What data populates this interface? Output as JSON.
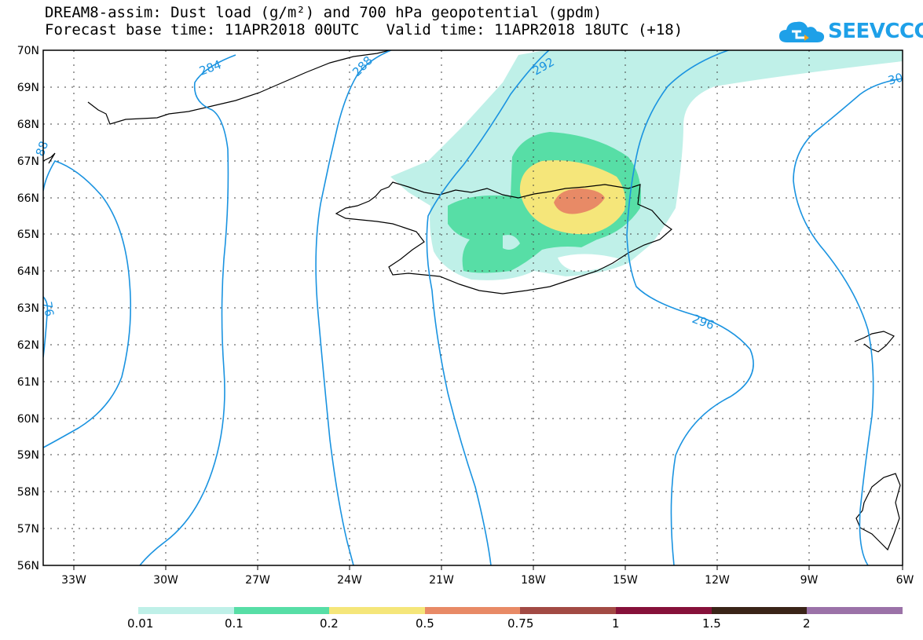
{
  "title": {
    "line1": "DREAM8-assim: Dust load (g/m²) and 700 hPa geopotential (gpdm)",
    "line2": "Forecast base time: 11APR2018 00UTC   Valid time: 11APR2018 18UTC (+18)"
  },
  "logo": {
    "text": "SEEVCCC",
    "color": "#1ea0e8",
    "icon": "cloud-icon"
  },
  "map": {
    "lat_labels": [
      "70N",
      "69N",
      "68N",
      "67N",
      "66N",
      "65N",
      "64N",
      "63N",
      "62N",
      "61N",
      "60N",
      "59N",
      "58N",
      "57N",
      "56N"
    ],
    "lon_labels": [
      "33W",
      "30W",
      "27W",
      "24W",
      "21W",
      "18W",
      "15W",
      "12W",
      "9W",
      "6W"
    ],
    "contour_labels": [
      "284",
      "288",
      "292",
      "296",
      "30",
      "76",
      "88"
    ],
    "contour_color": "#1a93e0"
  },
  "colorbar": {
    "labels": [
      "0.01",
      "0.1",
      "0.2",
      "0.5",
      "0.75",
      "1",
      "1.5",
      "2"
    ],
    "colors": [
      "#bff0e8",
      "#57dea6",
      "#f5e67a",
      "#e88a66",
      "#a24a44",
      "#86113a",
      "#3a2418",
      "#9b72a8"
    ]
  }
}
